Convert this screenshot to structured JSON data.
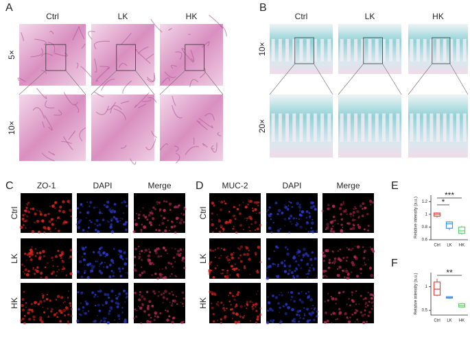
{
  "panels": {
    "A": {
      "label": "A",
      "columns": [
        "Ctrl",
        "LK",
        "HK"
      ],
      "rows": [
        "5×",
        "10×"
      ]
    },
    "B": {
      "label": "B",
      "columns": [
        "Ctrl",
        "LK",
        "HK"
      ],
      "rows": [
        "10×",
        "20×"
      ]
    },
    "C": {
      "label": "C",
      "columns": [
        "ZO-1",
        "DAPI",
        "Merge"
      ],
      "rows": [
        "Ctrl",
        "LK",
        "HK"
      ]
    },
    "D": {
      "label": "D",
      "columns": [
        "MUC-2",
        "DAPI",
        "Merge"
      ],
      "rows": [
        "Ctrl",
        "LK",
        "HK"
      ]
    }
  },
  "chart_data": [
    {
      "type": "box",
      "label": "E",
      "ylabel": "Relative intensity (a.u.)",
      "categories": [
        "Ctrl",
        "LK",
        "HK"
      ],
      "boxes": [
        {
          "min": 0.95,
          "q1": 0.97,
          "median": 1.0,
          "q3": 1.02,
          "max": 1.03,
          "color": "#e8423f"
        },
        {
          "min": 0.75,
          "q1": 0.78,
          "median": 0.85,
          "q3": 0.88,
          "max": 0.89,
          "color": "#3d8fe0"
        },
        {
          "min": 0.68,
          "q1": 0.7,
          "median": 0.74,
          "q3": 0.8,
          "max": 0.82,
          "color": "#5ecf6a"
        }
      ],
      "ylim": [
        0.6,
        1.3
      ],
      "yticks": [
        0.6,
        0.8,
        1.0,
        1.2
      ],
      "brackets": [
        {
          "label": "*",
          "between": [
            "Ctrl",
            "LK"
          ]
        },
        {
          "label": "***",
          "between": [
            "Ctrl",
            "HK"
          ]
        }
      ]
    },
    {
      "type": "box",
      "label": "F",
      "ylabel": "Relative intensity (a.u.)",
      "categories": [
        "Ctrl",
        "LK",
        "HK"
      ],
      "boxes": [
        {
          "min": 0.8,
          "q1": 0.82,
          "median": 0.95,
          "q3": 1.1,
          "max": 1.17,
          "color": "#e8423f"
        },
        {
          "min": 0.75,
          "q1": 0.76,
          "median": 0.77,
          "q3": 0.79,
          "max": 0.8,
          "color": "#3d8fe0"
        },
        {
          "min": 0.56,
          "q1": 0.57,
          "median": 0.6,
          "q3": 0.64,
          "max": 0.65,
          "color": "#5ecf6a"
        }
      ],
      "ylim": [
        0.4,
        1.3
      ],
      "yticks": [
        0.5,
        1.0
      ],
      "brackets": [
        {
          "label": "**",
          "between": [
            "Ctrl",
            "HK"
          ]
        }
      ]
    }
  ]
}
